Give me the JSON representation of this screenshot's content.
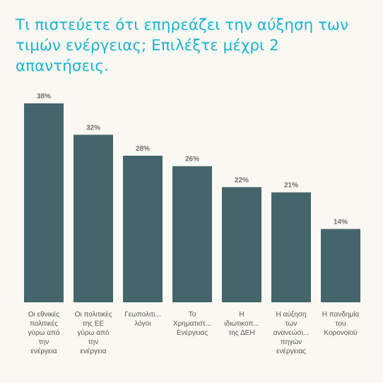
{
  "title": "Τι πιστεύετε ότι επηρεάζει την αύξηση των τιμών ενέργειας; Επιλέξτε μέχρι 2 απαντήσεις.",
  "colors": {
    "title": "#1ab3cf",
    "bar": "#45656c",
    "background": "#faf8f3",
    "value_label": "#6f6f6f",
    "category_label": "#555555"
  },
  "chart_data": {
    "type": "bar",
    "title": "Τι πιστεύετε ότι επηρεάζει την αύξηση των τιμών ενέργειας; Επιλέξτε μέχρι 2 απαντήσεις.",
    "xlabel": "",
    "ylabel": "",
    "ylim": [
      0,
      38
    ],
    "grid": false,
    "categories": [
      [
        "Οι εθνικές",
        "πολιτικές",
        "γύρω από",
        "την",
        "ενέργεια"
      ],
      [
        "Οι πολιτικές",
        "της ΕΕ",
        "γύρω από",
        "την",
        "ενέργεια"
      ],
      [
        "Γεωπολιτι...",
        "λόγοι"
      ],
      [
        "Το",
        "Χρηματιστ...",
        "Ενέργειας"
      ],
      [
        "Η",
        "ιδιωτικοπ...",
        "της ΔΕΗ"
      ],
      [
        "Η αύξηση",
        "των",
        "ανανεώσι...",
        "πηγών",
        "ενέργειας"
      ],
      [
        "Η πανδημία",
        "του",
        "Κορονοϊού"
      ]
    ],
    "values": [
      38,
      32,
      28,
      26,
      22,
      21,
      14
    ],
    "value_labels": [
      "38%",
      "32%",
      "28%",
      "26%",
      "22%",
      "21%",
      "14%"
    ]
  }
}
